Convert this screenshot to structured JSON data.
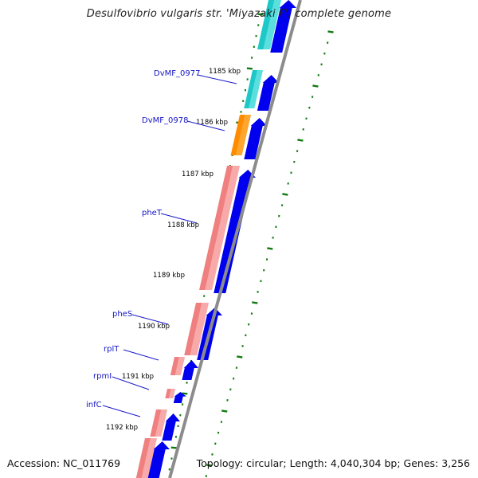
{
  "title": "Desulfovibrio vulgaris str. 'Miyazaki F', complete genome",
  "footer": {
    "accession": "Accession: NC_011769",
    "topology": "Topology: circular; Length: 4,040,304 bp; Genes: 3,256"
  },
  "scale_labels": [
    {
      "label": "1185 kbp"
    },
    {
      "label": "1186 kbp"
    },
    {
      "label": "1187 kbp"
    },
    {
      "label": "1188 kbp"
    },
    {
      "label": "1189 kbp"
    },
    {
      "label": "1190 kbp"
    },
    {
      "label": "1191 kbp"
    },
    {
      "label": "1192 kbp"
    }
  ],
  "gene_labels": [
    {
      "label": "DvMF_0977"
    },
    {
      "label": "DvMF_0978"
    },
    {
      "label": "pheT"
    },
    {
      "label": "pheS"
    },
    {
      "label": "rplT"
    },
    {
      "label": "rpmI"
    },
    {
      "label": "infC"
    }
  ],
  "colors": {
    "cyan_feature": "#1ec8c8",
    "orange_feature": "#ff8c00",
    "salmon_feature": "#f08080",
    "blue_arrow": "#0000ee",
    "backbone": "#8c8c8c",
    "tick_green": "#127a12",
    "leader": "#1a1acc",
    "gene_label": "#1515c8"
  }
}
